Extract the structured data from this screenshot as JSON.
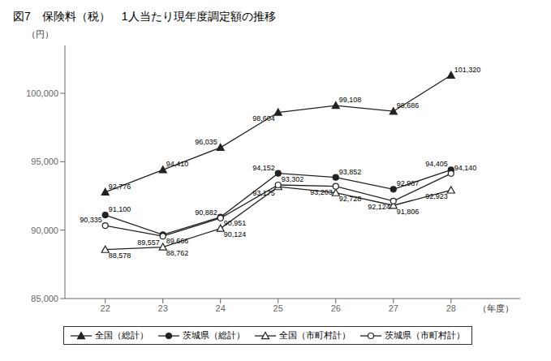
{
  "chart_data": {
    "type": "line",
    "title": "図7　保険料（税）　1人当たり現年度調定額の推移",
    "y_label": "（円）",
    "x_label": "（年度）",
    "x": [
      22,
      23,
      24,
      25,
      26,
      27,
      28
    ],
    "xlim": [
      21.3,
      29.2
    ],
    "xticks": [
      22,
      23,
      24,
      25,
      26,
      27,
      28
    ],
    "ylim": [
      85000,
      103500
    ],
    "yticks": [
      {
        "value": 85000,
        "label": "85,000"
      },
      {
        "value": 90000,
        "label": "90,000"
      },
      {
        "value": 95000,
        "label": "95,000"
      },
      {
        "value": 100000,
        "label": "100,000"
      }
    ],
    "grid": false,
    "legend": "bottom",
    "data_labels": true,
    "series": [
      {
        "name": "全国（総計）",
        "color": "#222222",
        "marker": "triangle",
        "line_style": "solid",
        "values": [
          92776,
          94410,
          96035,
          98604,
          99108,
          98686,
          101320
        ],
        "value_labels": [
          "92,776",
          "94,410",
          "96,035",
          "98,604",
          "99,108",
          "98,686",
          "101,320"
        ]
      },
      {
        "name": "茨城県（総計）",
        "color": "#222222",
        "marker": "circle",
        "line_style": "solid",
        "values": [
          91100,
          89666,
          90951,
          94152,
          93852,
          92987,
          94405
        ],
        "value_labels": [
          "91,100",
          "89,666",
          "90,951",
          "94,152",
          "93,852",
          "92,987",
          "94,405"
        ]
      },
      {
        "name": "全国（市町村計）",
        "color": "#222222",
        "marker": "triangle-open",
        "line_style": "solid",
        "values": [
          88578,
          88762,
          90124,
          93175,
          92728,
          91806,
          92923
        ],
        "value_labels": [
          "88,578",
          "88,762",
          "90,124",
          "93,175",
          "92,728",
          "91,806",
          "92,923"
        ]
      },
      {
        "name": "茨城県（市町村計）",
        "color": "#222222",
        "marker": "circle-open",
        "line_style": "solid",
        "values": [
          90335,
          89557,
          90882,
          93302,
          93203,
          92124,
          94140
        ],
        "value_labels": [
          "90,335",
          "89,557",
          "90,882",
          "93,302",
          "93,203",
          "92,124",
          "94,140"
        ]
      }
    ]
  }
}
